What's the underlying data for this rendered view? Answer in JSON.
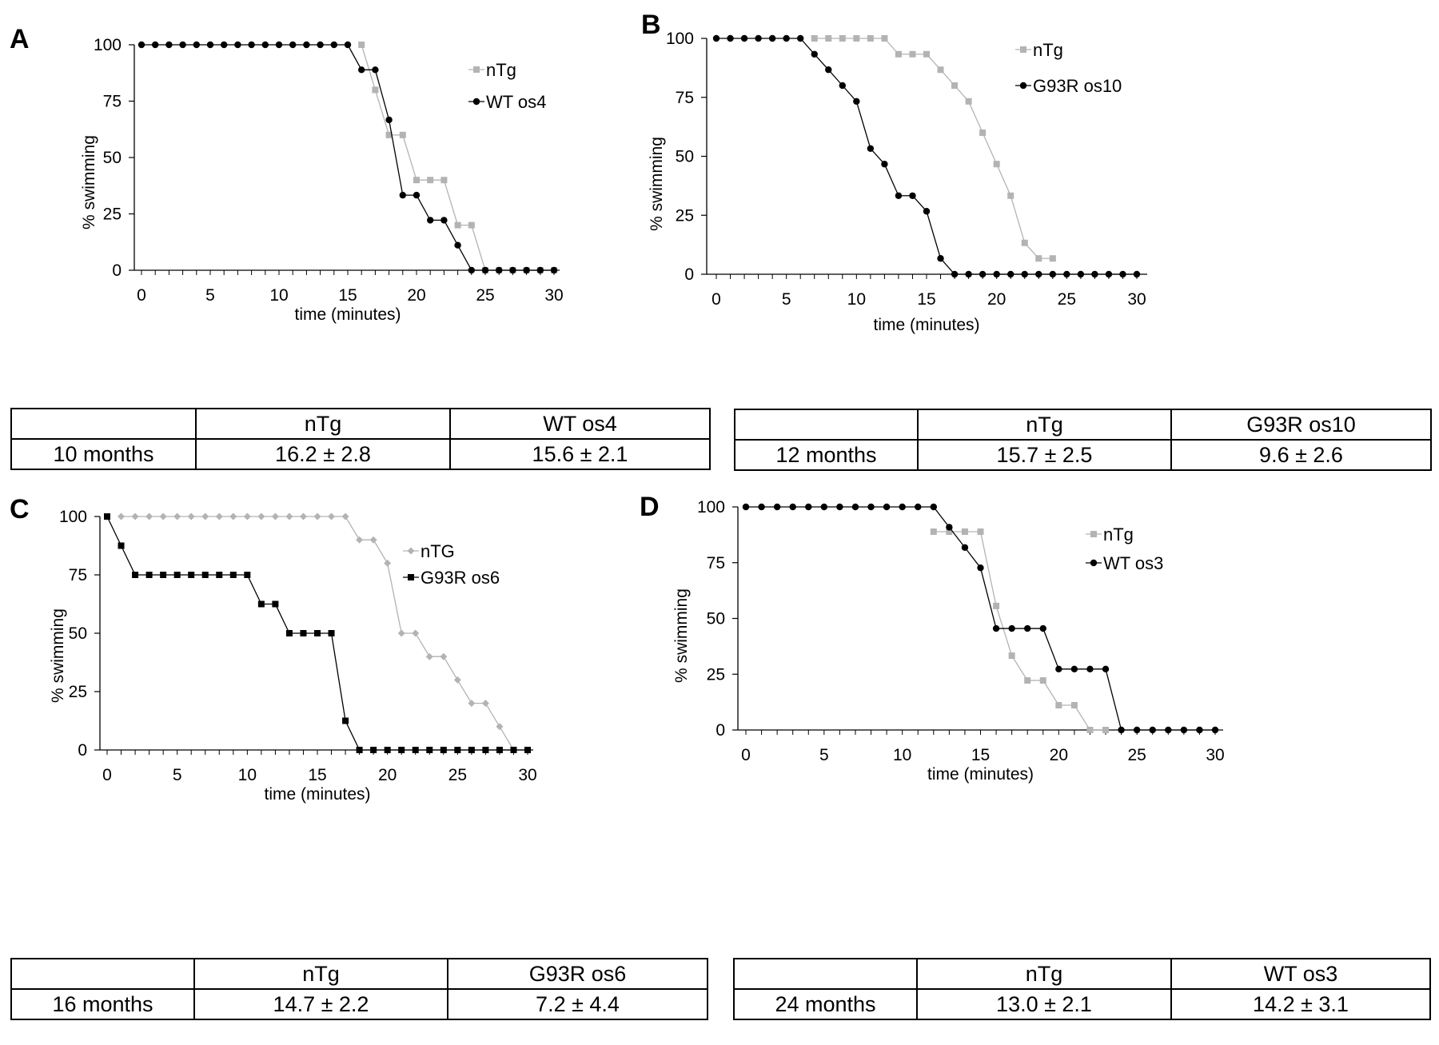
{
  "panels": [
    {
      "letter": "A",
      "table": {
        "header": [
          "",
          "nTg",
          "WT os4"
        ],
        "row": [
          "10 months",
          "16.2 ± 2.8",
          "15.6 ± 2.1"
        ]
      }
    },
    {
      "letter": "B",
      "table": {
        "header": [
          "",
          "nTg",
          "G93R os10"
        ],
        "row": [
          "12 months",
          "15.7 ± 2.5",
          "9.6 ± 2.6"
        ]
      }
    },
    {
      "letter": "C",
      "table": {
        "header": [
          "",
          "nTg",
          "G93R os6"
        ],
        "row": [
          "16 months",
          "14.7 ± 2.2",
          "7.2 ± 4.4"
        ]
      }
    },
    {
      "letter": "D",
      "table": {
        "header": [
          "",
          "nTg",
          "WT os3"
        ],
        "row": [
          "24 months",
          "13.0 ± 2.1",
          "14.2 ± 3.1"
        ]
      }
    }
  ],
  "colors": {
    "ntg": "#b3b3b3",
    "mutant": "#000000",
    "axis": "#000000"
  },
  "chart_data": [
    {
      "type": "line",
      "xlabel": "time (minutes)",
      "ylabel": "% swimming",
      "xlim": [
        0,
        30
      ],
      "ylim": [
        0,
        100
      ],
      "xticks": [
        0,
        5,
        10,
        15,
        20,
        25,
        30
      ],
      "yticks": [
        0,
        25,
        50,
        75,
        100
      ],
      "legend_position": "top-right",
      "series": [
        {
          "name": "nTg",
          "marker": "square",
          "color": "#b3b3b3",
          "x": [
            16,
            17,
            18,
            19,
            20,
            21,
            22,
            23,
            24,
            25,
            26,
            27,
            28,
            29,
            30
          ],
          "y": [
            100,
            80,
            60,
            60,
            40,
            40,
            40,
            20,
            20,
            0,
            0,
            0,
            0,
            0,
            0
          ]
        },
        {
          "name": "WT os4",
          "marker": "circle",
          "color": "#000000",
          "x": [
            0,
            1,
            2,
            3,
            4,
            5,
            6,
            7,
            8,
            9,
            10,
            11,
            12,
            13,
            14,
            15,
            16,
            17,
            18,
            19,
            20,
            21,
            22,
            23,
            24,
            25,
            26,
            27,
            28,
            29,
            30
          ],
          "y": [
            100,
            100,
            100,
            100,
            100,
            100,
            100,
            100,
            100,
            100,
            100,
            100,
            100,
            100,
            100,
            100,
            88.9,
            88.9,
            66.7,
            33.3,
            33.3,
            22.2,
            22.2,
            11.1,
            0,
            0,
            0,
            0,
            0,
            0,
            0
          ]
        }
      ]
    },
    {
      "type": "line",
      "xlabel": "time (minutes)",
      "ylabel": "% swimming",
      "xlim": [
        0,
        30
      ],
      "ylim": [
        0,
        100
      ],
      "xticks": [
        0,
        5,
        10,
        15,
        20,
        25,
        30
      ],
      "yticks": [
        0,
        25,
        50,
        75,
        100
      ],
      "legend_position": "top-right",
      "series": [
        {
          "name": "nTg",
          "marker": "square",
          "color": "#b3b3b3",
          "x": [
            7,
            8,
            9,
            10,
            11,
            12,
            13,
            14,
            15,
            16,
            17,
            18,
            19,
            20,
            21,
            22,
            23,
            24
          ],
          "y": [
            100,
            100,
            100,
            100,
            100,
            100,
            93.3,
            93.3,
            93.3,
            86.7,
            80,
            73.3,
            60,
            46.7,
            33.3,
            13.3,
            6.7,
            6.7
          ]
        },
        {
          "name": "G93R os10",
          "marker": "circle",
          "color": "#000000",
          "x": [
            0,
            1,
            2,
            3,
            4,
            5,
            6,
            7,
            8,
            9,
            10,
            11,
            12,
            13,
            14,
            15,
            16,
            17,
            18,
            19,
            20,
            21,
            22,
            23,
            24,
            25,
            26,
            27,
            28,
            29,
            30
          ],
          "y": [
            100,
            100,
            100,
            100,
            100,
            100,
            100,
            93.3,
            86.7,
            80,
            73.3,
            53.3,
            46.7,
            33.3,
            33.3,
            26.7,
            6.7,
            0,
            0,
            0,
            0,
            0,
            0,
            0,
            0,
            0,
            0,
            0,
            0,
            0,
            0
          ]
        }
      ]
    },
    {
      "type": "line",
      "xlabel": "time (minutes)",
      "ylabel": "% swimming",
      "xlim": [
        0,
        30
      ],
      "ylim": [
        0,
        100
      ],
      "xticks": [
        0,
        5,
        10,
        15,
        20,
        25,
        30
      ],
      "yticks": [
        0,
        25,
        50,
        75,
        100
      ],
      "legend_position": "top-right",
      "series": [
        {
          "name": "nTG",
          "marker": "diamond",
          "color": "#b3b3b3",
          "x": [
            1,
            2,
            3,
            4,
            5,
            6,
            7,
            8,
            9,
            10,
            11,
            12,
            13,
            14,
            15,
            16,
            17,
            18,
            19,
            20,
            21,
            22,
            23,
            24,
            25,
            26,
            27,
            28,
            29
          ],
          "y": [
            100,
            100,
            100,
            100,
            100,
            100,
            100,
            100,
            100,
            100,
            100,
            100,
            100,
            100,
            100,
            100,
            100,
            90,
            90,
            80,
            50,
            50,
            40,
            40,
            30,
            20,
            20,
            10,
            0
          ]
        },
        {
          "name": "G93R os6",
          "marker": "square",
          "color": "#000000",
          "x": [
            0,
            1,
            2,
            3,
            4,
            5,
            6,
            7,
            8,
            9,
            10,
            11,
            12,
            13,
            14,
            15,
            16,
            17,
            18,
            19,
            20,
            21,
            22,
            23,
            24,
            25,
            26,
            27,
            28,
            29,
            30
          ],
          "y": [
            100,
            87.5,
            75,
            75,
            75,
            75,
            75,
            75,
            75,
            75,
            75,
            62.5,
            62.5,
            50,
            50,
            50,
            50,
            12.5,
            0,
            0,
            0,
            0,
            0,
            0,
            0,
            0,
            0,
            0,
            0,
            0,
            0
          ]
        }
      ]
    },
    {
      "type": "line",
      "xlabel": "time (minutes)",
      "ylabel": "% swimming",
      "xlim": [
        0,
        30
      ],
      "ylim": [
        0,
        100
      ],
      "xticks": [
        0,
        5,
        10,
        15,
        20,
        25,
        30
      ],
      "yticks": [
        0,
        25,
        50,
        75,
        100
      ],
      "legend_position": "top-right",
      "series": [
        {
          "name": "nTg",
          "marker": "square",
          "color": "#b3b3b3",
          "x": [
            12,
            13,
            14,
            15,
            16,
            17,
            18,
            19,
            20,
            21,
            22,
            23
          ],
          "y": [
            88.9,
            88.9,
            88.9,
            88.9,
            55.6,
            33.3,
            22.2,
            22.2,
            11.1,
            11.1,
            0,
            0
          ]
        },
        {
          "name": "WT os3",
          "marker": "circle",
          "color": "#000000",
          "x": [
            0,
            1,
            2,
            3,
            4,
            5,
            6,
            7,
            8,
            9,
            10,
            11,
            12,
            13,
            14,
            15,
            16,
            17,
            18,
            19,
            20,
            21,
            22,
            23,
            24,
            25,
            26,
            27,
            28,
            29,
            30
          ],
          "y": [
            100,
            100,
            100,
            100,
            100,
            100,
            100,
            100,
            100,
            100,
            100,
            100,
            100,
            90.9,
            81.8,
            72.7,
            45.5,
            45.5,
            45.5,
            45.5,
            27.3,
            27.3,
            27.3,
            27.3,
            0,
            0,
            0,
            0,
            0,
            0,
            0
          ]
        }
      ]
    }
  ]
}
